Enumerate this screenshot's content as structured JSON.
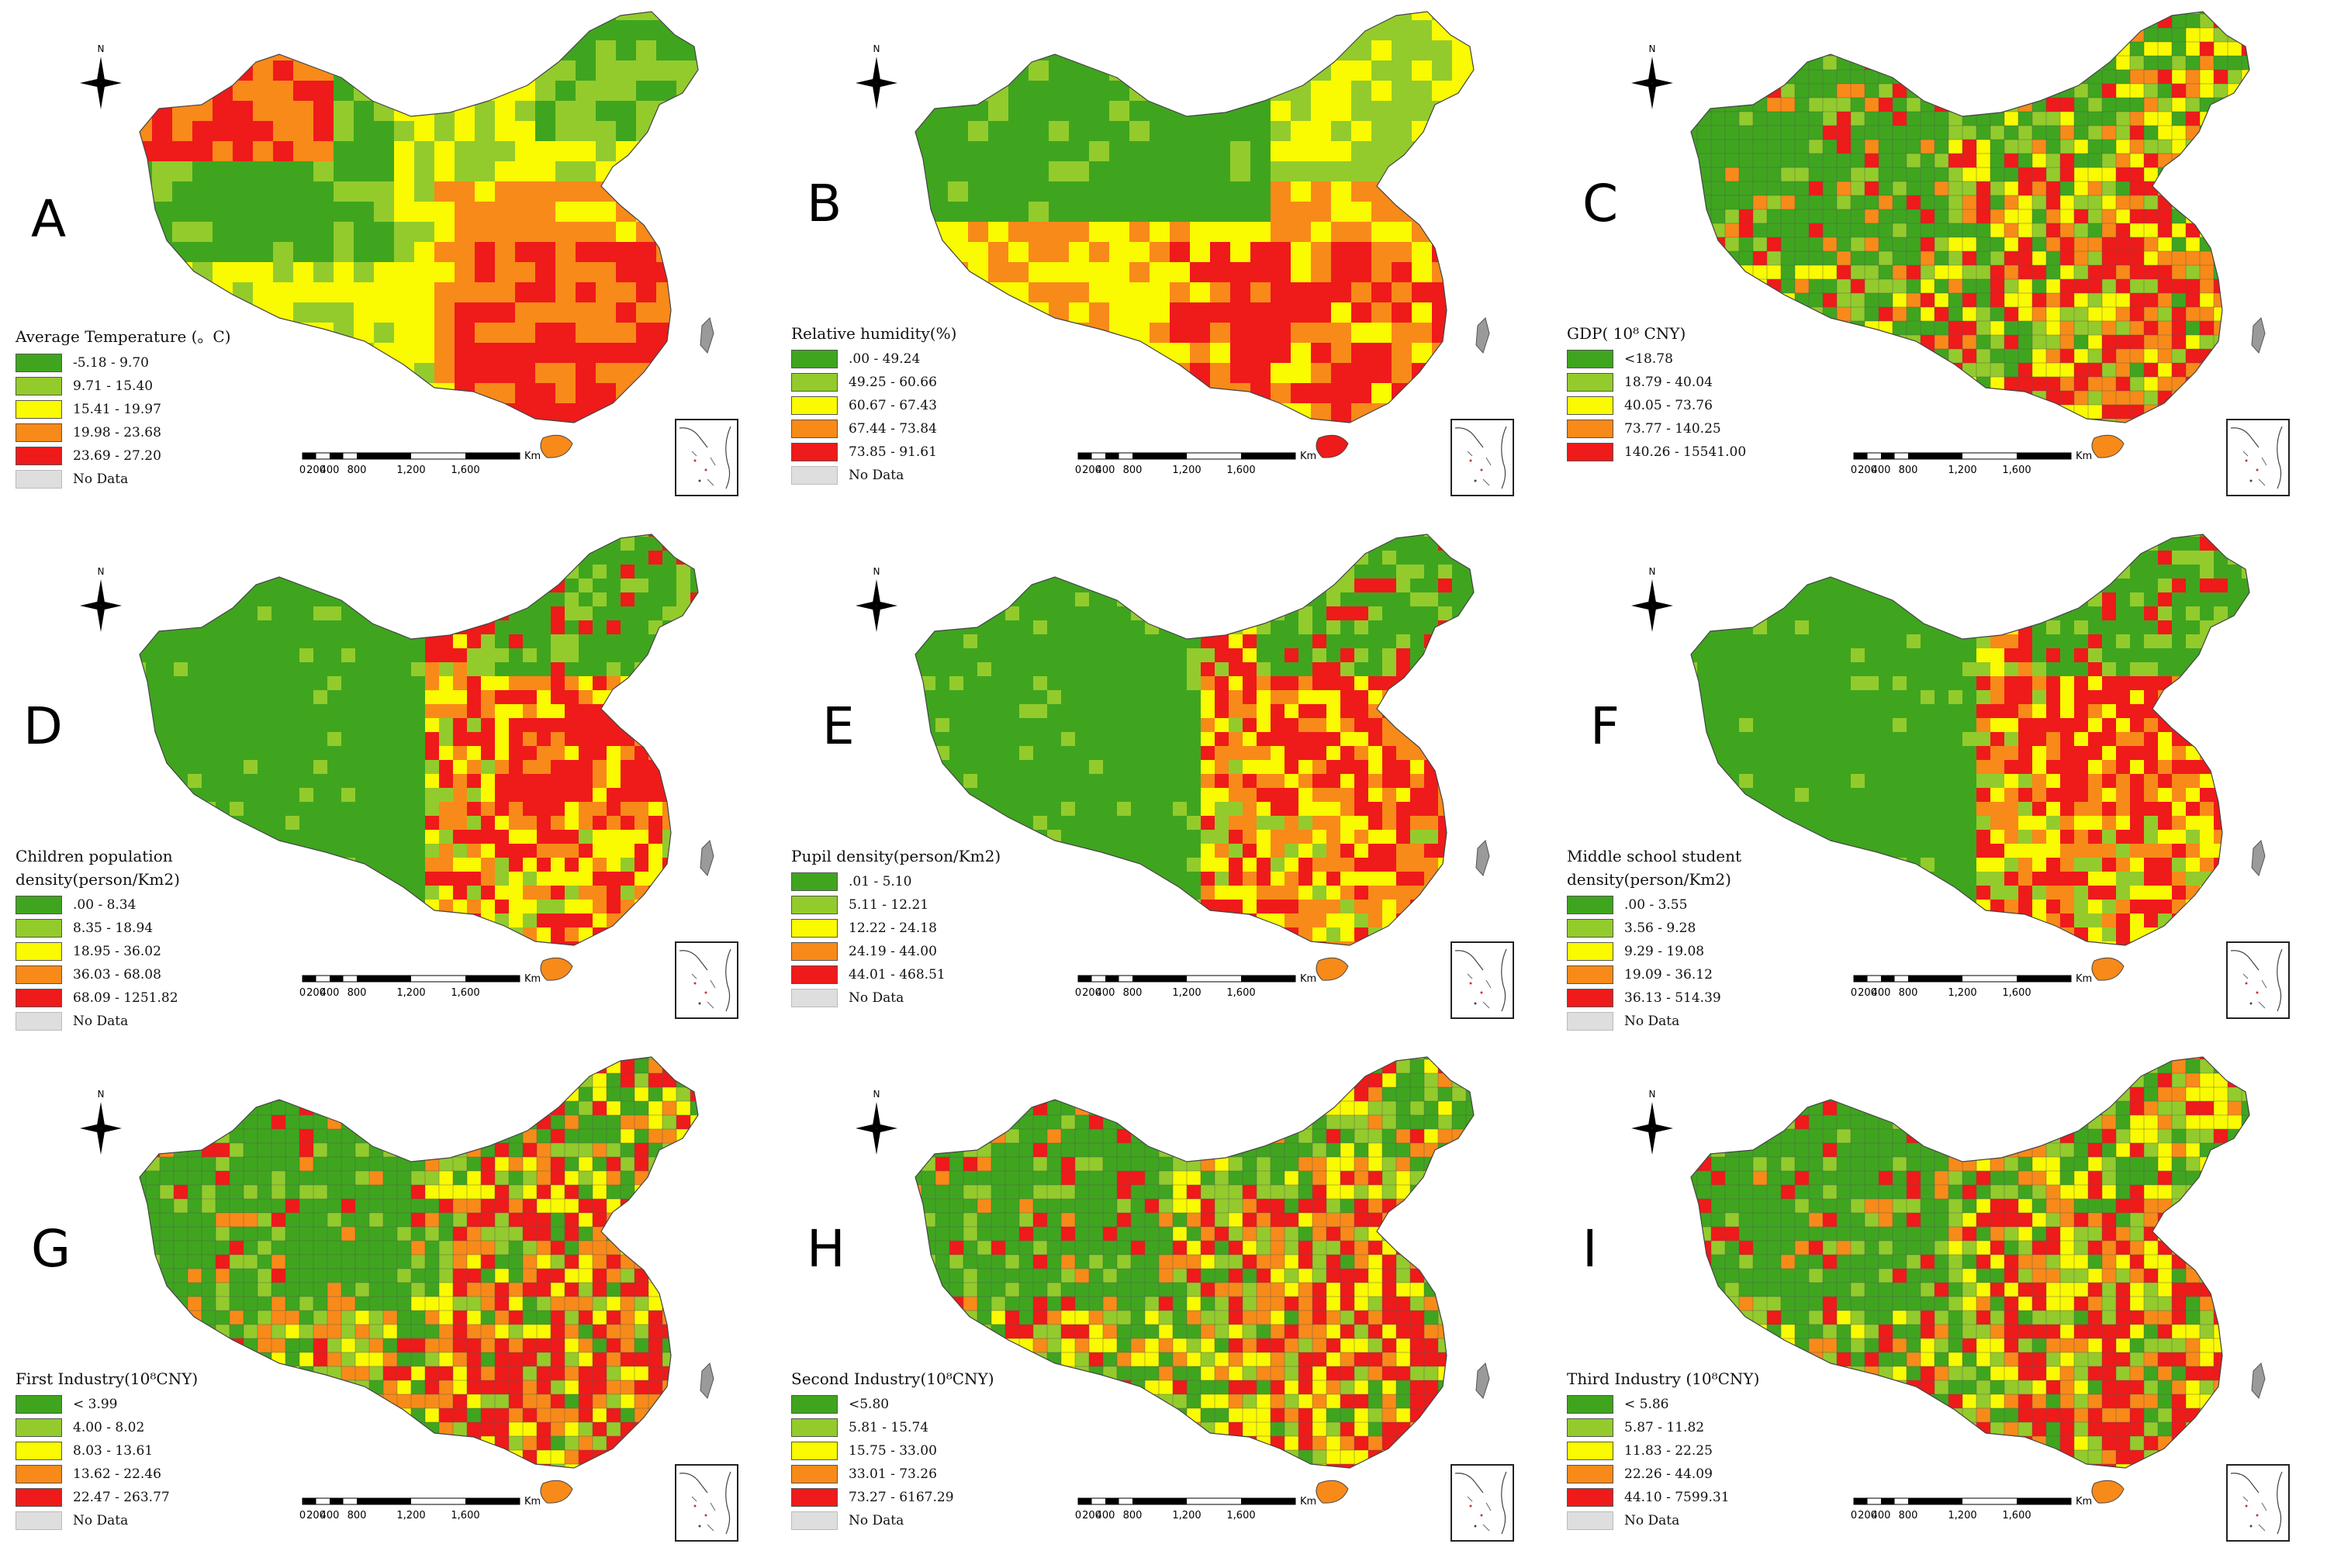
{
  "compass_label": "N",
  "scale_bar": {
    "ticks": [
      "0",
      "200",
      "400",
      "800",
      "1,200",
      "1,600"
    ],
    "unit": "Km"
  },
  "colors": {
    "class1": "#3fa51f",
    "class2": "#93cb2c",
    "class3": "#fafa00",
    "class4": "#f88a19",
    "class5": "#ef1a1a",
    "no_data": "#dedede"
  },
  "panels": [
    {
      "letter": "A",
      "legend_title": "Average Temperature (。C)",
      "classes": [
        "-5.18 - 9.70",
        "9.71 - 15.40",
        "15.41 - 19.97",
        "19.98 - 23.68",
        "23.69 - 27.20"
      ],
      "no_data": "No Data"
    },
    {
      "letter": "B",
      "legend_title": "Relative humidity(%)",
      "classes": [
        ".00 - 49.24",
        "49.25 - 60.66",
        "60.67 - 67.43",
        "67.44 - 73.84",
        "73.85 - 91.61"
      ],
      "no_data": "No Data"
    },
    {
      "letter": "C",
      "legend_title": "GDP( 10⁸ CNY)",
      "classes": [
        "<18.78",
        "18.79 - 40.04",
        "40.05 - 73.76",
        "73.77 - 140.25",
        "140.26 - 15541.00"
      ],
      "no_data": ""
    },
    {
      "letter": "D",
      "legend_title": "Children population",
      "legend_title_2": "density(person/Km2)",
      "classes": [
        ".00 - 8.34",
        "8.35 - 18.94",
        "18.95 - 36.02",
        "36.03 - 68.08",
        "68.09 - 1251.82"
      ],
      "no_data": "No Data"
    },
    {
      "letter": "E",
      "legend_title": "Pupil density(person/Km2)",
      "classes": [
        ".01 - 5.10",
        "5.11 - 12.21",
        "12.22 - 24.18",
        "24.19 - 44.00",
        "44.01 - 468.51"
      ],
      "no_data": "No Data"
    },
    {
      "letter": "F",
      "legend_title": "Middle school student",
      "legend_title_2": "density(person/Km2)",
      "classes": [
        ".00 - 3.55",
        "3.56 - 9.28",
        "9.29 - 19.08",
        "19.09 - 36.12",
        "36.13 - 514.39"
      ],
      "no_data": "No Data"
    },
    {
      "letter": "G",
      "legend_title": "First Industry(10⁸CNY)",
      "classes": [
        "< 3.99",
        "4.00 - 8.02",
        "8.03 - 13.61",
        "13.62 - 22.46",
        "22.47 - 263.77"
      ],
      "no_data": "No Data"
    },
    {
      "letter": "H",
      "legend_title": "Second Industry(10⁸CNY)",
      "classes": [
        "<5.80",
        "5.81 - 15.74",
        "15.75 - 33.00",
        "33.01 - 73.26",
        "73.27 - 6167.29"
      ],
      "no_data": "No Data"
    },
    {
      "letter": "I",
      "legend_title": "Third Industry (10⁸CNY)",
      "classes": [
        "< 5.86",
        "5.87 - 11.82",
        "11.83 - 22.25",
        "22.26 - 44.09",
        "44.10 - 7599.31"
      ],
      "no_data": "No Data"
    }
  ]
}
